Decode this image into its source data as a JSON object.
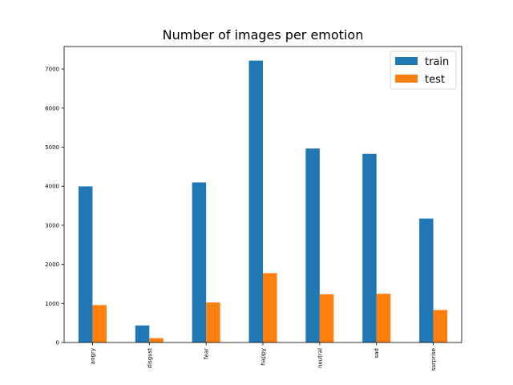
{
  "chart_data": {
    "type": "bar",
    "title": "Number of images per emotion",
    "xlabel": "",
    "ylabel": "",
    "categories": [
      "angry",
      "disgust",
      "fear",
      "happy",
      "neutral",
      "sad",
      "surprise"
    ],
    "series": [
      {
        "name": "train",
        "values": [
          3995,
          436,
          4097,
          7215,
          4965,
          4830,
          3171
        ]
      },
      {
        "name": "test",
        "values": [
          958,
          111,
          1024,
          1774,
          1233,
          1247,
          831
        ]
      }
    ],
    "ylim": [
      0,
      7576
    ],
    "yticks": [
      0,
      1000,
      2000,
      3000,
      4000,
      5000,
      6000,
      7000
    ],
    "grid": false,
    "legend_position": "top-right",
    "colors": {
      "train": "#1f77b4",
      "test": "#ff7f0e"
    }
  }
}
